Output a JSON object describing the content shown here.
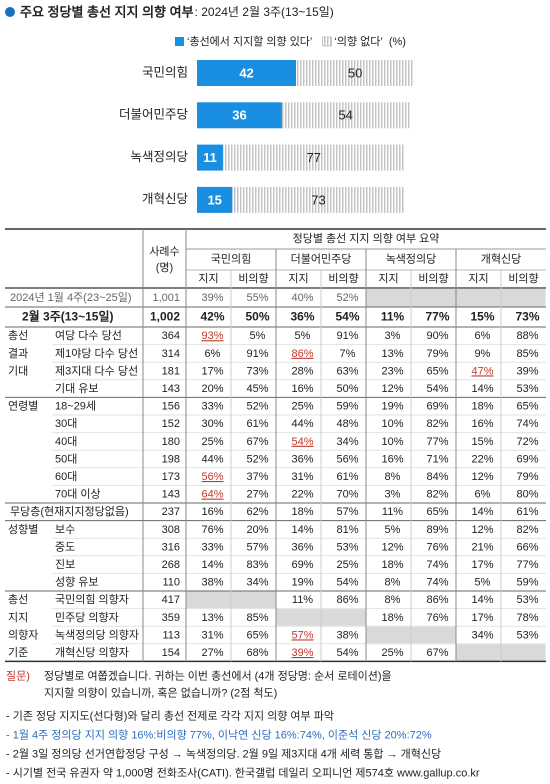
{
  "chart_data": {
    "type": "bar",
    "orientation": "horizontal",
    "stacked": true,
    "title": "주요 정당별 총선 지지 의향 여부",
    "subtitle": ": 2024년 2월 3주(13~15일)",
    "unit": "(%)",
    "categories": [
      "국민의힘",
      "더불어민주당",
      "녹색정의당",
      "개혁신당"
    ],
    "series": [
      {
        "name": "‘총선에서 지지할 의향 있다’",
        "color": "#1a8ee1",
        "values": [
          42,
          36,
          11,
          15
        ]
      },
      {
        "name": "‘의향 없다’",
        "color": "#c4c4c4",
        "pattern": "hatch",
        "values": [
          50,
          54,
          77,
          73
        ]
      }
    ]
  },
  "table": {
    "title": "정당별 총선 지지 의향 여부 요약",
    "n_header": [
      "사례수",
      "(명)"
    ],
    "parties": [
      "국민의힘",
      "더불어민주당",
      "녹색정의당",
      "개혁신당"
    ],
    "subheaders": [
      "지지",
      "비의향"
    ],
    "sections": [
      {
        "rows": [
          {
            "label": "2024년 1월 4주(23~25일)",
            "muted": true,
            "n": "1,001",
            "values": [
              "39%",
              "55%",
              "40%",
              "52%",
              null,
              null,
              null,
              null
            ]
          }
        ]
      },
      {
        "rows": [
          {
            "label": "2월 3주(13~15일)",
            "bold": true,
            "n": "1,002",
            "values": [
              "42%",
              "50%",
              "36%",
              "54%",
              "11%",
              "77%",
              "15%",
              "73%"
            ]
          }
        ]
      },
      {
        "rows": [
          {
            "group": "총선",
            "label": "여당 다수 당선",
            "n": "364",
            "values": [
              "93%",
              "5%",
              "5%",
              "91%",
              "3%",
              "90%",
              "6%",
              "88%"
            ],
            "highlight": [
              0
            ]
          },
          {
            "group": "결과",
            "label": "제1야당 다수 당선",
            "n": "314",
            "values": [
              "6%",
              "91%",
              "86%",
              "7%",
              "13%",
              "79%",
              "9%",
              "85%"
            ],
            "highlight": [
              2
            ]
          },
          {
            "group": "기대",
            "label": "제3지대 다수 당선",
            "n": "181",
            "values": [
              "17%",
              "73%",
              "28%",
              "63%",
              "23%",
              "65%",
              "47%",
              "39%"
            ],
            "highlight": [
              6
            ]
          },
          {
            "label": "기대 유보",
            "n": "143",
            "values": [
              "20%",
              "45%",
              "16%",
              "50%",
              "12%",
              "54%",
              "14%",
              "53%"
            ]
          }
        ]
      },
      {
        "rows": [
          {
            "group": "연령별",
            "label": "18~29세",
            "n": "156",
            "values": [
              "33%",
              "52%",
              "25%",
              "59%",
              "19%",
              "69%",
              "18%",
              "65%"
            ]
          },
          {
            "label": "30대",
            "n": "152",
            "values": [
              "30%",
              "61%",
              "44%",
              "48%",
              "10%",
              "82%",
              "16%",
              "74%"
            ]
          },
          {
            "label": "40대",
            "n": "180",
            "values": [
              "25%",
              "67%",
              "54%",
              "34%",
              "10%",
              "77%",
              "15%",
              "72%"
            ],
            "highlight": [
              2
            ]
          },
          {
            "label": "50대",
            "n": "198",
            "values": [
              "44%",
              "52%",
              "36%",
              "56%",
              "16%",
              "71%",
              "22%",
              "69%"
            ]
          },
          {
            "label": "60대",
            "n": "173",
            "values": [
              "56%",
              "37%",
              "31%",
              "61%",
              "8%",
              "84%",
              "12%",
              "79%"
            ],
            "highlight": [
              0
            ]
          },
          {
            "label": "70대 이상",
            "n": "143",
            "values": [
              "64%",
              "27%",
              "22%",
              "70%",
              "3%",
              "82%",
              "6%",
              "80%"
            ],
            "highlight": [
              0
            ]
          }
        ]
      },
      {
        "rows": [
          {
            "label": "무당층(현재지지정당없음)",
            "n": "237",
            "values": [
              "16%",
              "62%",
              "18%",
              "57%",
              "11%",
              "65%",
              "14%",
              "61%"
            ]
          }
        ]
      },
      {
        "rows": [
          {
            "group": "성향별",
            "label": "보수",
            "n": "308",
            "values": [
              "76%",
              "20%",
              "14%",
              "81%",
              "5%",
              "89%",
              "12%",
              "82%"
            ]
          },
          {
            "label": "중도",
            "n": "316",
            "values": [
              "33%",
              "57%",
              "36%",
              "53%",
              "12%",
              "76%",
              "21%",
              "66%"
            ]
          },
          {
            "label": "진보",
            "n": "268",
            "values": [
              "14%",
              "83%",
              "69%",
              "25%",
              "18%",
              "74%",
              "17%",
              "77%"
            ]
          },
          {
            "label": "성향 유보",
            "n": "110",
            "values": [
              "38%",
              "34%",
              "19%",
              "54%",
              "8%",
              "74%",
              "5%",
              "59%"
            ]
          }
        ]
      },
      {
        "rows": [
          {
            "group": "총선",
            "label": "국민의힘 의향자",
            "n": "417",
            "values": [
              null,
              null,
              "11%",
              "86%",
              "8%",
              "86%",
              "14%",
              "53%"
            ]
          },
          {
            "group": "지지",
            "label": "민주당 의향자",
            "n": "359",
            "values": [
              "13%",
              "85%",
              null,
              null,
              "18%",
              "76%",
              "17%",
              "78%"
            ]
          },
          {
            "group": "의향자",
            "label": "녹색정의당 의향자",
            "n": "113",
            "values": [
              "31%",
              "65%",
              "57%",
              "38%",
              null,
              null,
              "34%",
              "53%"
            ],
            "highlight": [
              2
            ]
          },
          {
            "group": "기준",
            "label": "개혁신당 의향자",
            "n": "154",
            "values": [
              "27%",
              "68%",
              "39%",
              "54%",
              "25%",
              "67%",
              null,
              null
            ],
            "highlight": [
              2
            ]
          }
        ]
      }
    ]
  },
  "notes": {
    "question_label": "질문)",
    "question": [
      "정당별로 여쭙겠습니다. 귀하는 이번 총선에서 (4개 정당명: 순서 로테이션)을",
      "지지할 의향이 있습니까, 혹은 없습니까? (2점 척도)"
    ],
    "bullets": [
      "- 기존 정당 지지도(선다형)와 달리 총선 전제로 각각 지지 의향 여부 파악",
      "- 1월 4주 정의당 지지 의향 16%:비의향 77%, 이낙연 신당 16%:74%, 이준석 신당 20%:72%",
      "- 2월 3일 정의당 선거연합정당 구성 → 녹색정의당. 2월 9일 제3지대 4개 세력 통합 → 개혁신당",
      "- 시기별 전국 유권자 약 1,000명 전화조사(CATI). 한국갤럽 데일리 오피니언 제574호 www.gallup.co.kr"
    ]
  }
}
